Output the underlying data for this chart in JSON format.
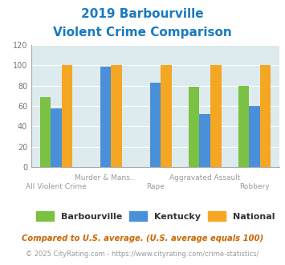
{
  "title_line1": "2019 Barbourville",
  "title_line2": "Violent Crime Comparison",
  "title_color": "#1a7abf",
  "barbourville": [
    69,
    0,
    0,
    79,
    80
  ],
  "kentucky": [
    58,
    99,
    83,
    52,
    60
  ],
  "national": [
    100,
    100,
    100,
    100,
    100
  ],
  "bar_colors": [
    "#7bc143",
    "#4a90d9",
    "#f5a623"
  ],
  "ylim": [
    0,
    120
  ],
  "yticks": [
    0,
    20,
    40,
    60,
    80,
    100,
    120
  ],
  "bg_color": "#ddeaee",
  "legend_labels": [
    "Barbourville",
    "Kentucky",
    "National"
  ],
  "tick_labels_top": [
    "",
    "Murder & Mans...",
    "",
    "Aggravated Assault",
    ""
  ],
  "tick_labels_bot": [
    "All Violent Crime",
    "",
    "Rape",
    "",
    "Robbery"
  ],
  "footnote1": "Compared to U.S. average. (U.S. average equals 100)",
  "footnote2": "© 2025 CityRating.com - https://www.cityrating.com/crime-statistics/",
  "footnote1_color": "#cc6600",
  "footnote2_color": "#999999",
  "url_color": "#4a90d9"
}
